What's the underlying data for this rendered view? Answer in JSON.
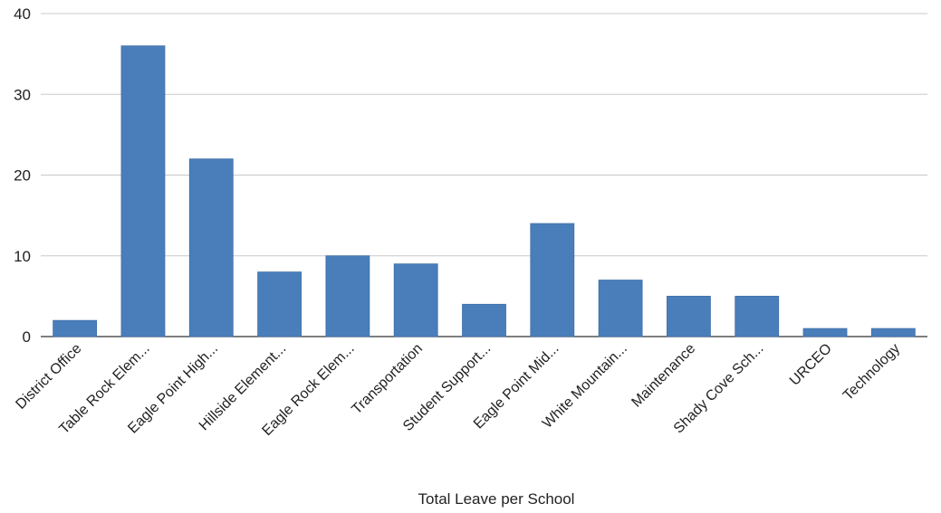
{
  "chart_data": {
    "type": "bar",
    "title": "",
    "xlabel": "Total Leave per School",
    "ylabel": "",
    "ylim": [
      0,
      40
    ],
    "yticks": [
      0,
      10,
      20,
      30,
      40
    ],
    "grid": true,
    "categories": [
      "District Office",
      "Table Rock Elem...",
      "Eagle Point High...",
      "Hillside Element...",
      "Eagle Rock Elem...",
      "Transportation",
      "Student Support...",
      "Eagle Point Mid...",
      "White Mountain...",
      "Maintenance",
      "Shady Cove Sch...",
      "URCEO",
      "Technology"
    ],
    "values": [
      2,
      36,
      22,
      8,
      10,
      9,
      4,
      14,
      7,
      5,
      5,
      1,
      1
    ],
    "bar_color": "#4a7ebb"
  }
}
